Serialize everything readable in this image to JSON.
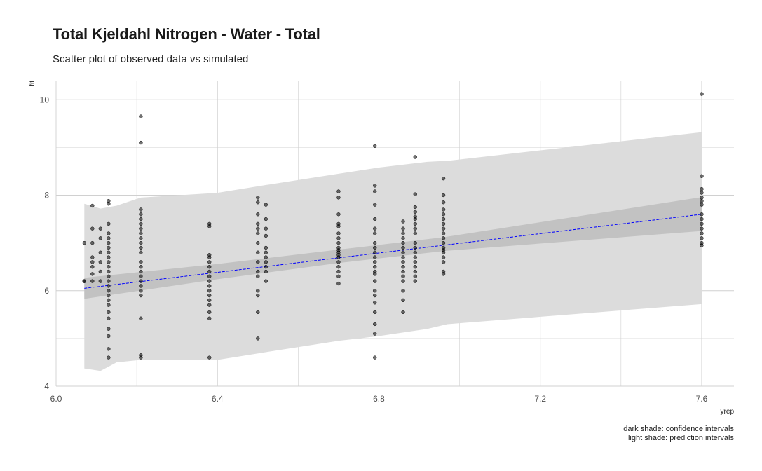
{
  "title": "Total Kjeldahl Nitrogen - Water - Total",
  "subtitle": "Scatter plot of observed data vs simulated",
  "caption": [
    "dark shade: confidence intervals",
    "light shade: prediction intervals"
  ],
  "colors": {
    "prediction_band": "#dcdcdc",
    "confidence_band": "#c2c2c2",
    "fit_line": "#0000ff",
    "points": "#000000",
    "grid": "#d0d0d0"
  },
  "chart_data": {
    "type": "scatter",
    "title": "Total Kjeldahl Nitrogen - Water - Total",
    "subtitle": "Scatter plot of observed data vs simulated",
    "xlabel": "yrep",
    "ylabel": "fit",
    "xlim": [
      6.0,
      7.68
    ],
    "ylim": [
      4.0,
      10.4
    ],
    "x_ticks": [
      6.0,
      6.4,
      6.8,
      7.2,
      7.6
    ],
    "x_tick_labels": [
      "6.0",
      "6.4",
      "6.8",
      "7.2",
      "7.6"
    ],
    "y_ticks": [
      4,
      6,
      8,
      10
    ],
    "y_tick_labels": [
      "4",
      "6",
      "8",
      "10"
    ],
    "grid": true,
    "legend": "none",
    "fit_line": {
      "x": [
        6.07,
        7.6
      ],
      "y": [
        6.05,
        7.6
      ],
      "style": "dashed"
    },
    "confidence_band": {
      "x": [
        6.07,
        6.4,
        6.7,
        6.96,
        7.6
      ],
      "lower": [
        5.83,
        6.24,
        6.58,
        6.83,
        7.25
      ],
      "upper": [
        6.27,
        6.56,
        6.86,
        7.12,
        7.96
      ]
    },
    "prediction_band": {
      "x": [
        6.07,
        6.11,
        6.15,
        6.21,
        6.4,
        6.51,
        6.7,
        6.8,
        6.92,
        6.97,
        7.6
      ],
      "lower": [
        4.37,
        4.32,
        4.5,
        4.55,
        4.55,
        4.7,
        4.95,
        5.05,
        5.2,
        5.3,
        5.72
      ],
      "upper": [
        7.82,
        7.72,
        7.78,
        7.95,
        8.05,
        8.2,
        8.45,
        8.58,
        8.7,
        8.72,
        9.32
      ]
    },
    "points": [
      [
        6.07,
        7.0
      ],
      [
        6.07,
        6.2
      ],
      [
        6.07,
        6.2
      ],
      [
        6.09,
        7.78
      ],
      [
        6.09,
        7.3
      ],
      [
        6.09,
        7.0
      ],
      [
        6.09,
        6.7
      ],
      [
        6.09,
        6.6
      ],
      [
        6.09,
        6.5
      ],
      [
        6.09,
        6.35
      ],
      [
        6.09,
        6.2
      ],
      [
        6.11,
        7.3
      ],
      [
        6.11,
        7.1
      ],
      [
        6.11,
        6.8
      ],
      [
        6.11,
        6.6
      ],
      [
        6.11,
        6.4
      ],
      [
        6.11,
        6.2
      ],
      [
        6.13,
        7.88
      ],
      [
        6.13,
        7.82
      ],
      [
        6.13,
        7.4
      ],
      [
        6.13,
        7.2
      ],
      [
        6.13,
        7.1
      ],
      [
        6.13,
        7.0
      ],
      [
        6.13,
        6.9
      ],
      [
        6.13,
        6.8
      ],
      [
        6.13,
        6.7
      ],
      [
        6.13,
        6.6
      ],
      [
        6.13,
        6.5
      ],
      [
        6.13,
        6.4
      ],
      [
        6.13,
        6.3
      ],
      [
        6.13,
        6.2
      ],
      [
        6.13,
        6.1
      ],
      [
        6.13,
        6.0
      ],
      [
        6.13,
        5.9
      ],
      [
        6.13,
        5.8
      ],
      [
        6.13,
        5.7
      ],
      [
        6.13,
        5.55
      ],
      [
        6.13,
        5.42
      ],
      [
        6.13,
        5.2
      ],
      [
        6.13,
        5.05
      ],
      [
        6.13,
        4.78
      ],
      [
        6.13,
        4.6
      ],
      [
        6.21,
        9.65
      ],
      [
        6.21,
        9.1
      ],
      [
        6.21,
        7.7
      ],
      [
        6.21,
        7.6
      ],
      [
        6.21,
        7.5
      ],
      [
        6.21,
        7.4
      ],
      [
        6.21,
        7.3
      ],
      [
        6.21,
        7.2
      ],
      [
        6.21,
        7.1
      ],
      [
        6.21,
        7.0
      ],
      [
        6.21,
        6.9
      ],
      [
        6.21,
        6.8
      ],
      [
        6.21,
        6.6
      ],
      [
        6.21,
        6.5
      ],
      [
        6.21,
        6.4
      ],
      [
        6.21,
        6.3
      ],
      [
        6.21,
        6.2
      ],
      [
        6.21,
        6.1
      ],
      [
        6.21,
        6.0
      ],
      [
        6.21,
        5.9
      ],
      [
        6.21,
        5.42
      ],
      [
        6.21,
        4.65
      ],
      [
        6.21,
        4.6
      ],
      [
        6.38,
        7.4
      ],
      [
        6.38,
        7.35
      ],
      [
        6.38,
        6.75
      ],
      [
        6.38,
        6.7
      ],
      [
        6.38,
        6.6
      ],
      [
        6.38,
        6.5
      ],
      [
        6.38,
        6.4
      ],
      [
        6.38,
        6.3
      ],
      [
        6.38,
        6.2
      ],
      [
        6.38,
        6.1
      ],
      [
        6.38,
        6.0
      ],
      [
        6.38,
        5.9
      ],
      [
        6.38,
        5.8
      ],
      [
        6.38,
        5.7
      ],
      [
        6.38,
        5.55
      ],
      [
        6.38,
        5.42
      ],
      [
        6.38,
        4.6
      ],
      [
        6.5,
        7.95
      ],
      [
        6.5,
        7.85
      ],
      [
        6.5,
        7.6
      ],
      [
        6.5,
        7.4
      ],
      [
        6.5,
        7.3
      ],
      [
        6.5,
        7.2
      ],
      [
        6.5,
        7.0
      ],
      [
        6.5,
        6.8
      ],
      [
        6.5,
        6.6
      ],
      [
        6.5,
        6.4
      ],
      [
        6.5,
        6.3
      ],
      [
        6.5,
        6.0
      ],
      [
        6.5,
        5.9
      ],
      [
        6.5,
        5.55
      ],
      [
        6.5,
        5.0
      ],
      [
        6.52,
        7.8
      ],
      [
        6.52,
        7.5
      ],
      [
        6.52,
        7.3
      ],
      [
        6.52,
        7.15
      ],
      [
        6.52,
        6.9
      ],
      [
        6.52,
        6.8
      ],
      [
        6.52,
        6.7
      ],
      [
        6.52,
        6.6
      ],
      [
        6.52,
        6.5
      ],
      [
        6.52,
        6.4
      ],
      [
        6.52,
        6.2
      ],
      [
        6.7,
        8.08
      ],
      [
        6.7,
        7.95
      ],
      [
        6.7,
        7.6
      ],
      [
        6.7,
        7.4
      ],
      [
        6.7,
        7.35
      ],
      [
        6.7,
        7.2
      ],
      [
        6.7,
        7.1
      ],
      [
        6.7,
        7.0
      ],
      [
        6.7,
        6.9
      ],
      [
        6.7,
        6.85
      ],
      [
        6.7,
        6.8
      ],
      [
        6.7,
        6.75
      ],
      [
        6.7,
        6.7
      ],
      [
        6.7,
        6.6
      ],
      [
        6.7,
        6.5
      ],
      [
        6.7,
        6.4
      ],
      [
        6.7,
        6.3
      ],
      [
        6.7,
        6.15
      ],
      [
        6.79,
        9.03
      ],
      [
        6.79,
        8.2
      ],
      [
        6.79,
        8.08
      ],
      [
        6.79,
        7.8
      ],
      [
        6.79,
        7.5
      ],
      [
        6.79,
        7.3
      ],
      [
        6.79,
        7.2
      ],
      [
        6.79,
        7.0
      ],
      [
        6.79,
        6.9
      ],
      [
        6.79,
        6.8
      ],
      [
        6.79,
        6.7
      ],
      [
        6.79,
        6.6
      ],
      [
        6.79,
        6.5
      ],
      [
        6.79,
        6.4
      ],
      [
        6.79,
        6.35
      ],
      [
        6.79,
        6.2
      ],
      [
        6.79,
        6.0
      ],
      [
        6.79,
        5.9
      ],
      [
        6.79,
        5.75
      ],
      [
        6.79,
        5.55
      ],
      [
        6.79,
        5.3
      ],
      [
        6.79,
        5.1
      ],
      [
        6.79,
        4.6
      ],
      [
        6.86,
        7.45
      ],
      [
        6.86,
        7.3
      ],
      [
        6.86,
        7.2
      ],
      [
        6.86,
        7.1
      ],
      [
        6.86,
        7.0
      ],
      [
        6.86,
        6.9
      ],
      [
        6.86,
        6.8
      ],
      [
        6.86,
        6.7
      ],
      [
        6.86,
        6.6
      ],
      [
        6.86,
        6.5
      ],
      [
        6.86,
        6.4
      ],
      [
        6.86,
        6.3
      ],
      [
        6.86,
        6.2
      ],
      [
        6.86,
        6.0
      ],
      [
        6.86,
        5.8
      ],
      [
        6.86,
        5.55
      ],
      [
        6.89,
        8.8
      ],
      [
        6.89,
        8.02
      ],
      [
        6.89,
        7.75
      ],
      [
        6.89,
        7.65
      ],
      [
        6.89,
        7.55
      ],
      [
        6.89,
        7.5
      ],
      [
        6.89,
        7.4
      ],
      [
        6.89,
        7.3
      ],
      [
        6.89,
        7.2
      ],
      [
        6.89,
        7.0
      ],
      [
        6.89,
        6.9
      ],
      [
        6.89,
        6.8
      ],
      [
        6.89,
        6.7
      ],
      [
        6.89,
        6.6
      ],
      [
        6.89,
        6.5
      ],
      [
        6.89,
        6.4
      ],
      [
        6.89,
        6.3
      ],
      [
        6.89,
        6.2
      ],
      [
        6.96,
        8.35
      ],
      [
        6.96,
        8.0
      ],
      [
        6.96,
        7.85
      ],
      [
        6.96,
        7.7
      ],
      [
        6.96,
        7.6
      ],
      [
        6.96,
        7.5
      ],
      [
        6.96,
        7.4
      ],
      [
        6.96,
        7.3
      ],
      [
        6.96,
        7.2
      ],
      [
        6.96,
        7.1
      ],
      [
        6.96,
        7.0
      ],
      [
        6.96,
        6.9
      ],
      [
        6.96,
        6.85
      ],
      [
        6.96,
        6.8
      ],
      [
        6.96,
        6.7
      ],
      [
        6.96,
        6.6
      ],
      [
        6.96,
        6.4
      ],
      [
        6.96,
        6.35
      ],
      [
        7.6,
        10.12
      ],
      [
        7.6,
        8.4
      ],
      [
        7.6,
        8.13
      ],
      [
        7.6,
        8.05
      ],
      [
        7.6,
        7.95
      ],
      [
        7.6,
        7.88
      ],
      [
        7.6,
        7.8
      ],
      [
        7.6,
        7.6
      ],
      [
        7.6,
        7.5
      ],
      [
        7.6,
        7.4
      ],
      [
        7.6,
        7.3
      ],
      [
        7.6,
        7.2
      ],
      [
        7.6,
        7.1
      ],
      [
        7.6,
        7.0
      ],
      [
        7.6,
        6.95
      ]
    ]
  }
}
